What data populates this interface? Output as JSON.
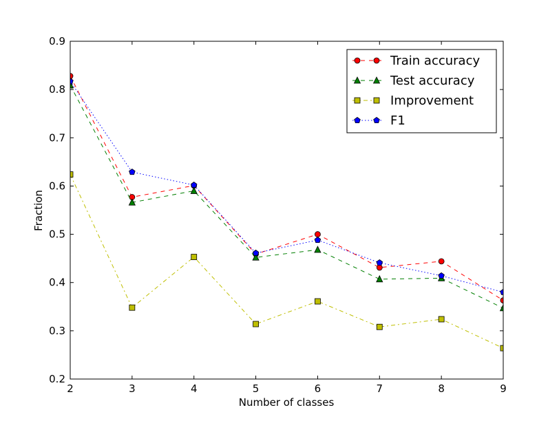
{
  "chart_data": {
    "type": "line",
    "title": "",
    "xlabel": "Number of classes",
    "ylabel": "Fraction",
    "x": [
      2,
      3,
      4,
      5,
      6,
      7,
      8,
      9
    ],
    "xlim": [
      2,
      9
    ],
    "ylim": [
      0.2,
      0.9
    ],
    "xticks": [
      "2",
      "3",
      "4",
      "5",
      "6",
      "7",
      "8",
      "9"
    ],
    "yticks": [
      "0.2",
      "0.3",
      "0.4",
      "0.5",
      "0.6",
      "0.7",
      "0.8",
      "0.9"
    ],
    "grid": false,
    "legend_position": "top-right",
    "series": [
      {
        "name": "Train accuracy",
        "color": "#ff0000",
        "marker": "circle",
        "dash": "dashed",
        "values": [
          0.828,
          0.577,
          0.601,
          0.459,
          0.5,
          0.431,
          0.444,
          0.363
        ]
      },
      {
        "name": "Test accuracy",
        "color": "#007f00",
        "marker": "triangle",
        "dash": "dashed",
        "values": [
          0.809,
          0.566,
          0.59,
          0.452,
          0.468,
          0.407,
          0.409,
          0.347
        ]
      },
      {
        "name": "Improvement",
        "color": "#bfbf00",
        "marker": "square",
        "dash": "dashdot",
        "values": [
          0.624,
          0.348,
          0.453,
          0.314,
          0.361,
          0.308,
          0.324,
          0.264
        ]
      },
      {
        "name": "F1",
        "color": "#0000ff",
        "marker": "pentagon",
        "dash": "dotted",
        "values": [
          0.817,
          0.629,
          0.602,
          0.461,
          0.488,
          0.441,
          0.414,
          0.38
        ]
      }
    ]
  }
}
